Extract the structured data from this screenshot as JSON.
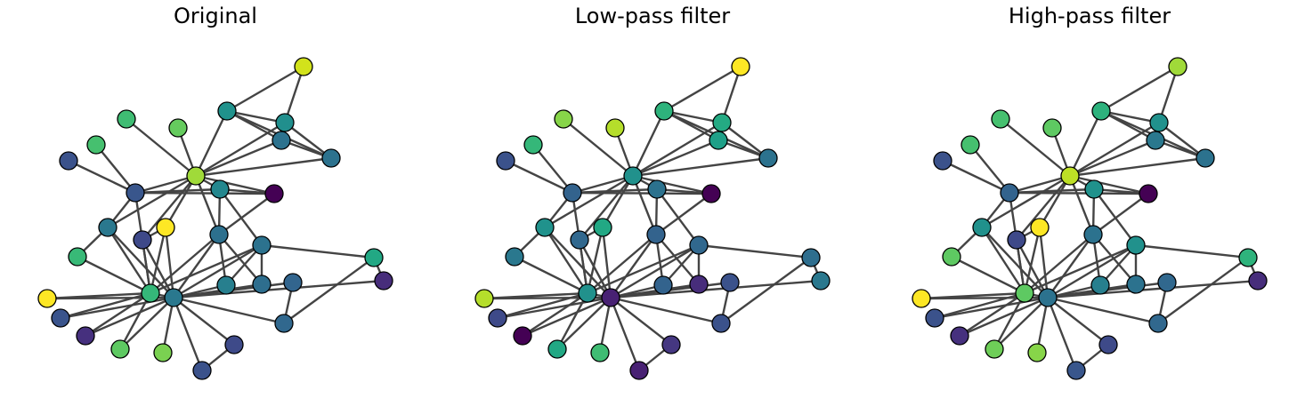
{
  "panels": [
    {
      "title": "Original",
      "node_colors": [
        "#d2e21b",
        "#20928c",
        "#3fbc73",
        "#218f8d",
        "#2c728e",
        "#65cb5e",
        "#46c06f",
        "#2c728e",
        "#3b528b",
        "#39568c",
        "#a0da39",
        "#24878e",
        "#440154",
        "#2a788e",
        "#3e4989",
        "#2d708e",
        "#fde725",
        "#38b977",
        "#2c728e",
        "#22a884",
        "#277f8e",
        "#2e6e8e",
        "#472d7b",
        "#32658e",
        "#fde725",
        "#3a548c",
        "#46307e",
        "#5ec962",
        "#7ad151",
        "#3b528b",
        "#35b779",
        "#3e4a89",
        "#31688e",
        "#2a788e"
      ]
    },
    {
      "title": "Low-pass filter",
      "node_colors": [
        "#fde725",
        "#2eb37c",
        "#87d549",
        "#24aa83",
        "#1fa088",
        "#b5de2b",
        "#35b779",
        "#2c728e",
        "#3b528b",
        "#33638d",
        "#21918c",
        "#2c728e",
        "#440154",
        "#20928c",
        "#31688e",
        "#33638d",
        "#22a884",
        "#2a788e",
        "#31688e",
        "#2e6e8e",
        "#33638d",
        "#472d7b",
        "#2a788e",
        "#3b528b",
        "#b5de2b",
        "#3e4a89",
        "#440154",
        "#22a884",
        "#3fbc73",
        "#482173",
        "#21918c",
        "#453781",
        "#3b528b",
        "#482173"
      ]
    },
    {
      "title": "High-pass filter",
      "node_colors": [
        "#a0da39",
        "#2db27d",
        "#46c06f",
        "#21918c",
        "#2a788e",
        "#5ec962",
        "#46c06f",
        "#2c728e",
        "#3b528b",
        "#33638d",
        "#bddf26",
        "#20928c",
        "#440154",
        "#21918c",
        "#3e4989",
        "#2c728e",
        "#fde725",
        "#5ec962",
        "#21918c",
        "#2eb37c",
        "#277f8e",
        "#2c728e",
        "#472d7b",
        "#31688e",
        "#fde725",
        "#3b528b",
        "#46307e",
        "#6ece58",
        "#87d549",
        "#39568c",
        "#5ec962",
        "#3e4a89",
        "#31688e",
        "#2c728e"
      ]
    }
  ]
}
